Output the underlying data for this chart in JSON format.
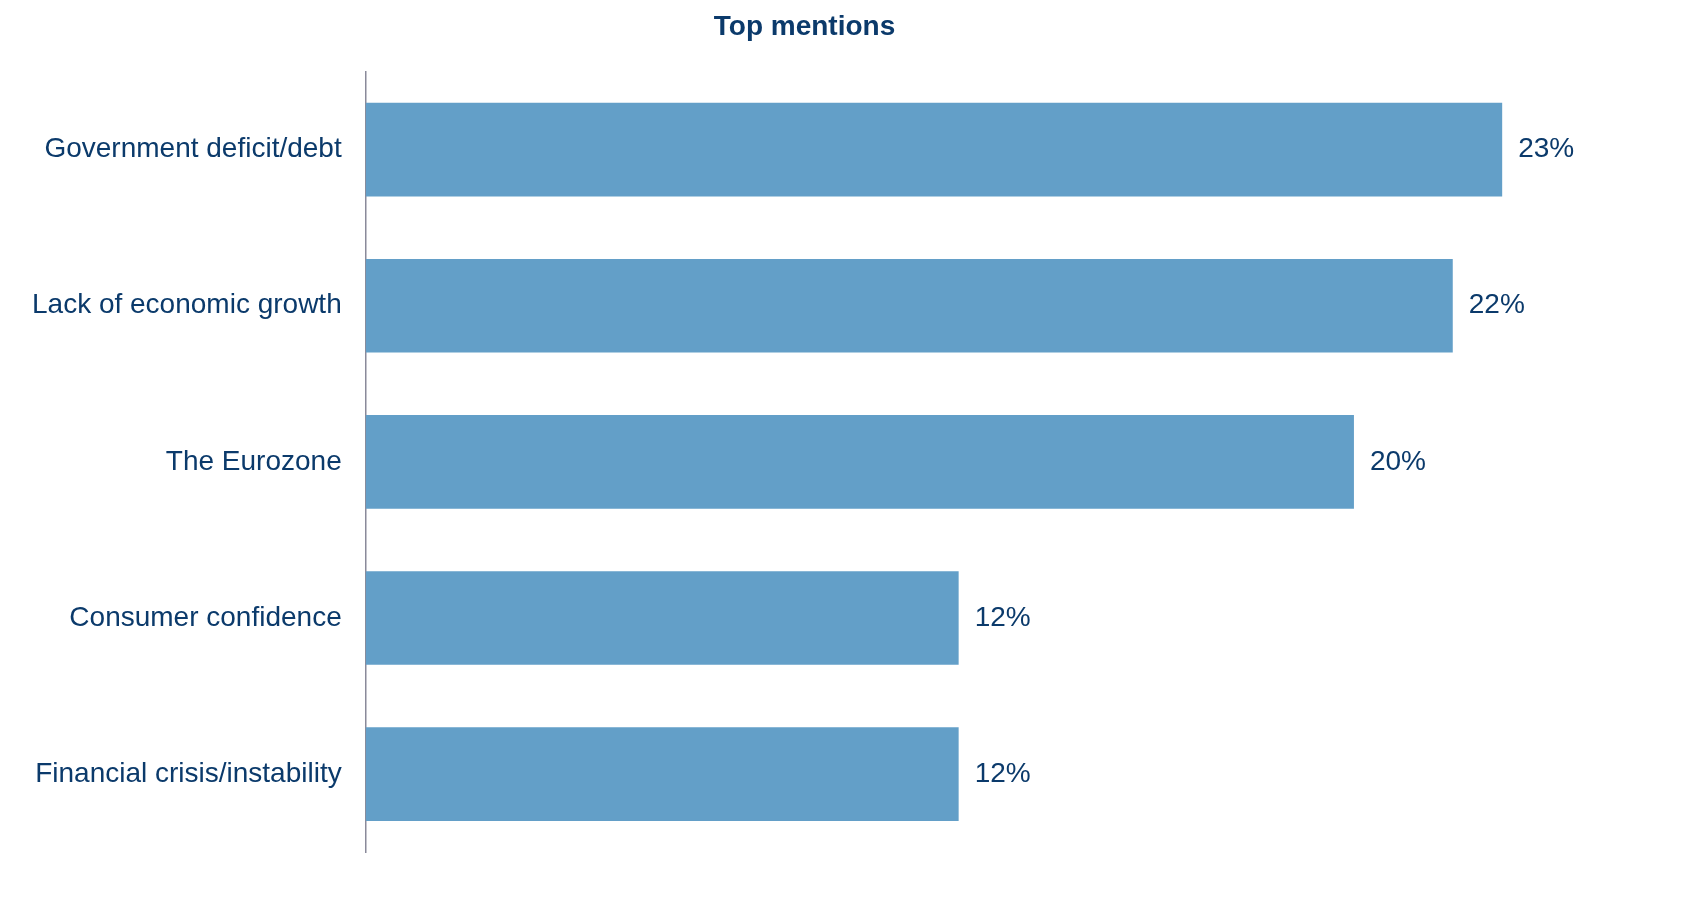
{
  "chart_data": {
    "type": "bar",
    "orientation": "horizontal",
    "title": "Top mentions",
    "categories": [
      "Government deficit/debt",
      "Lack of economic growth",
      "The Eurozone",
      "Consumer confidence",
      "Financial crisis/instability"
    ],
    "values": [
      23,
      22,
      20,
      12,
      12
    ],
    "value_labels": [
      "23%",
      "22%",
      "20%",
      "12%",
      "12%"
    ],
    "color": "#639fc8"
  }
}
